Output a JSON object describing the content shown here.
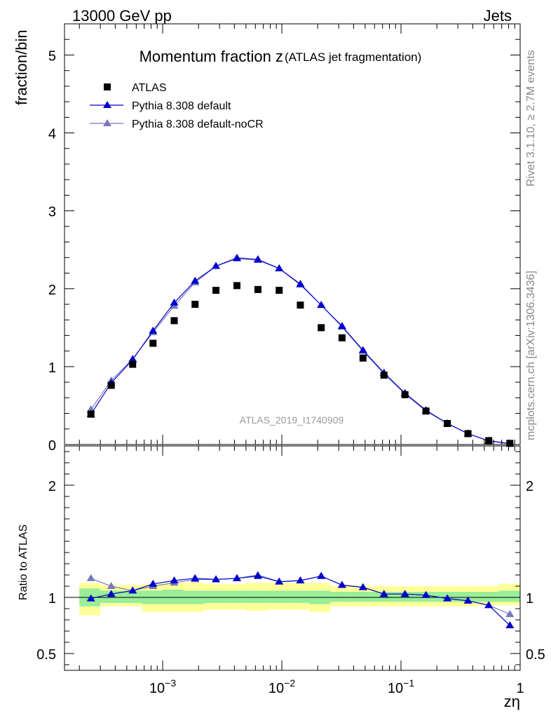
{
  "header": {
    "energy_label": "13000 GeV pp",
    "category_label": "Jets",
    "title_main": "Momentum fraction z",
    "title_sub": "(ATLAS jet fragmentation)",
    "side_label_top": "Rivet 3.1.10, ≥ 2.7M events",
    "side_label_bottom": "mcplots.cern.ch [arXiv:1306.3436]",
    "watermark": "ATLAS_2019_I1740909"
  },
  "colors": {
    "atlas": "#000000",
    "default": "#0000cc",
    "nocr": "#7777bb",
    "band_inner": "#99ee99",
    "band_outer": "#ffff99"
  },
  "chart_data": [
    {
      "type": "scatter",
      "panel": "main",
      "ylabel": "fraction/bin",
      "xscale": "log",
      "xlim": [
        0.00015,
        1
      ],
      "ylim": [
        0,
        5.4
      ],
      "yticks": [
        0,
        1,
        2,
        3,
        4,
        5
      ],
      "x_ticklabels": [
        "10^-3",
        "10^-2",
        "10^-1",
        "1"
      ],
      "legend": {
        "position": "top-left",
        "entries": [
          "ATLAS",
          "Pythia 8.308 default",
          "Pythia 8.308 default-noCR"
        ]
      },
      "x": [
        0.00025,
        0.00037,
        0.00056,
        0.00083,
        0.00125,
        0.00187,
        0.0028,
        0.0042,
        0.0063,
        0.0095,
        0.0143,
        0.0214,
        0.032,
        0.048,
        0.072,
        0.108,
        0.162,
        0.245,
        0.365,
        0.545,
        0.82
      ],
      "series": [
        {
          "name": "ATLAS",
          "marker": "square",
          "values": [
            0.39,
            0.76,
            1.03,
            1.3,
            1.59,
            1.8,
            1.98,
            2.04,
            1.99,
            1.98,
            1.79,
            1.5,
            1.37,
            1.11,
            0.89,
            0.64,
            0.43,
            0.27,
            0.14,
            0.05,
            0.015
          ]
        },
        {
          "name": "Pythia 8.308 default",
          "marker": "triangle",
          "values": [
            0.39,
            0.79,
            1.09,
            1.46,
            1.82,
            2.1,
            2.29,
            2.39,
            2.37,
            2.26,
            2.06,
            1.79,
            1.52,
            1.21,
            0.92,
            0.66,
            0.44,
            0.27,
            0.14,
            0.047,
            0.011
          ]
        },
        {
          "name": "Pythia 8.308 default-noCR",
          "marker": "triangle",
          "values": [
            0.45,
            0.82,
            1.1,
            1.44,
            1.78,
            2.08,
            2.29,
            2.4,
            2.38,
            2.26,
            2.05,
            1.79,
            1.51,
            1.2,
            0.91,
            0.65,
            0.43,
            0.27,
            0.14,
            0.047,
            0.013
          ]
        }
      ]
    },
    {
      "type": "line",
      "panel": "ratio",
      "ylabel": "Ratio to ATLAS",
      "xlabel": "zη",
      "xscale": "log",
      "xlim": [
        0.00015,
        1
      ],
      "ylim": [
        0.35,
        2.35
      ],
      "yticks": [
        0.5,
        1,
        2
      ],
      "x": [
        0.00025,
        0.00037,
        0.00056,
        0.00083,
        0.00125,
        0.00187,
        0.0028,
        0.0042,
        0.0063,
        0.0095,
        0.0143,
        0.0214,
        0.032,
        0.048,
        0.072,
        0.108,
        0.162,
        0.245,
        0.365,
        0.545,
        0.82
      ],
      "bin_edges": [
        0.0002,
        0.0003,
        0.00045,
        0.00067,
        0.001,
        0.0015,
        0.00225,
        0.0034,
        0.005,
        0.0075,
        0.0114,
        0.017,
        0.0255,
        0.038,
        0.058,
        0.087,
        0.13,
        0.195,
        0.295,
        0.44,
        0.66,
        1.0
      ],
      "uncertainty_bands": {
        "inner": [
          [
            0.92,
            1.08
          ],
          [
            0.95,
            1.06
          ],
          [
            0.95,
            1.06
          ],
          [
            0.94,
            1.06
          ],
          [
            0.94,
            1.07
          ],
          [
            0.94,
            1.06
          ],
          [
            0.95,
            1.06
          ],
          [
            0.95,
            1.06
          ],
          [
            0.95,
            1.06
          ],
          [
            0.95,
            1.06
          ],
          [
            0.95,
            1.06
          ],
          [
            0.94,
            1.06
          ],
          [
            0.96,
            1.05
          ],
          [
            0.96,
            1.05
          ],
          [
            0.96,
            1.05
          ],
          [
            0.96,
            1.05
          ],
          [
            0.96,
            1.05
          ],
          [
            0.96,
            1.05
          ],
          [
            0.96,
            1.05
          ],
          [
            0.96,
            1.05
          ],
          [
            0.96,
            1.06
          ]
        ],
        "outer": [
          [
            0.84,
            1.13
          ],
          [
            0.92,
            1.11
          ],
          [
            0.92,
            1.11
          ],
          [
            0.87,
            1.12
          ],
          [
            0.87,
            1.13
          ],
          [
            0.87,
            1.13
          ],
          [
            0.89,
            1.12
          ],
          [
            0.89,
            1.12
          ],
          [
            0.88,
            1.13
          ],
          [
            0.89,
            1.13
          ],
          [
            0.89,
            1.13
          ],
          [
            0.87,
            1.13
          ],
          [
            0.92,
            1.1
          ],
          [
            0.92,
            1.1
          ],
          [
            0.92,
            1.1
          ],
          [
            0.92,
            1.1
          ],
          [
            0.92,
            1.1
          ],
          [
            0.92,
            1.1
          ],
          [
            0.92,
            1.1
          ],
          [
            0.93,
            1.1
          ],
          [
            0.93,
            1.12
          ]
        ]
      },
      "series": [
        {
          "name": "Pythia 8.308 default",
          "values": [
            0.99,
            1.03,
            1.06,
            1.12,
            1.15,
            1.17,
            1.16,
            1.17,
            1.19,
            1.14,
            1.15,
            1.19,
            1.11,
            1.09,
            1.03,
            1.03,
            1.02,
            0.99,
            0.97,
            0.93,
            0.75
          ]
        },
        {
          "name": "Pythia 8.308 default-noCR",
          "values": [
            1.17,
            1.1,
            1.06,
            1.1,
            1.13,
            1.16,
            1.16,
            1.17,
            1.2,
            1.14,
            1.15,
            1.19,
            1.11,
            1.09,
            1.03,
            1.03,
            1.02,
            0.99,
            0.97,
            0.93,
            0.85
          ]
        }
      ]
    }
  ]
}
